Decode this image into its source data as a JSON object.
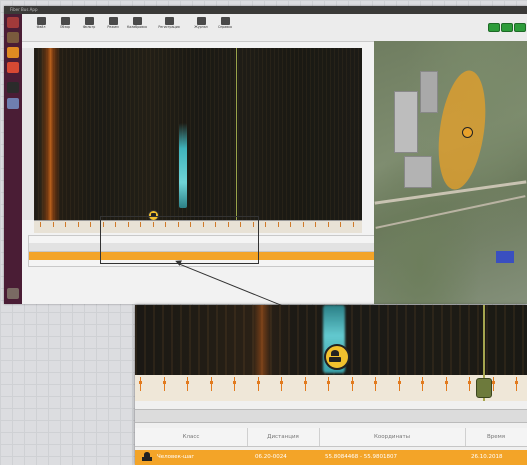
{
  "topbar": {
    "title": "Fiber Bus App",
    "tray": ""
  },
  "toolbar": {
    "buttons": [
      {
        "label": "Файл"
      },
      {
        "label": "Обзор"
      },
      {
        "label": "Фильтр"
      },
      {
        "label": "Режим"
      },
      {
        "label": "Калибровка"
      },
      {
        "label": "Регистрация"
      },
      {
        "label": "Журнал"
      },
      {
        "label": "Справка"
      }
    ]
  },
  "waterfall_panel": {
    "title": ""
  },
  "zoom": {
    "ruler_ticks": 18,
    "columns": [
      "Класс",
      "Дистанция",
      "Координаты",
      "Время"
    ],
    "row": {
      "class": "Человек-шаг",
      "distance": "06.20-0024",
      "coordinates": "55.8084468 - 55.9801807",
      "time": "26.10.2018"
    }
  },
  "colors": {
    "alert_row": "#f3a428",
    "signal": "#63c9cf",
    "heat": "#e27b1f",
    "map_zone": "#e8a028"
  }
}
